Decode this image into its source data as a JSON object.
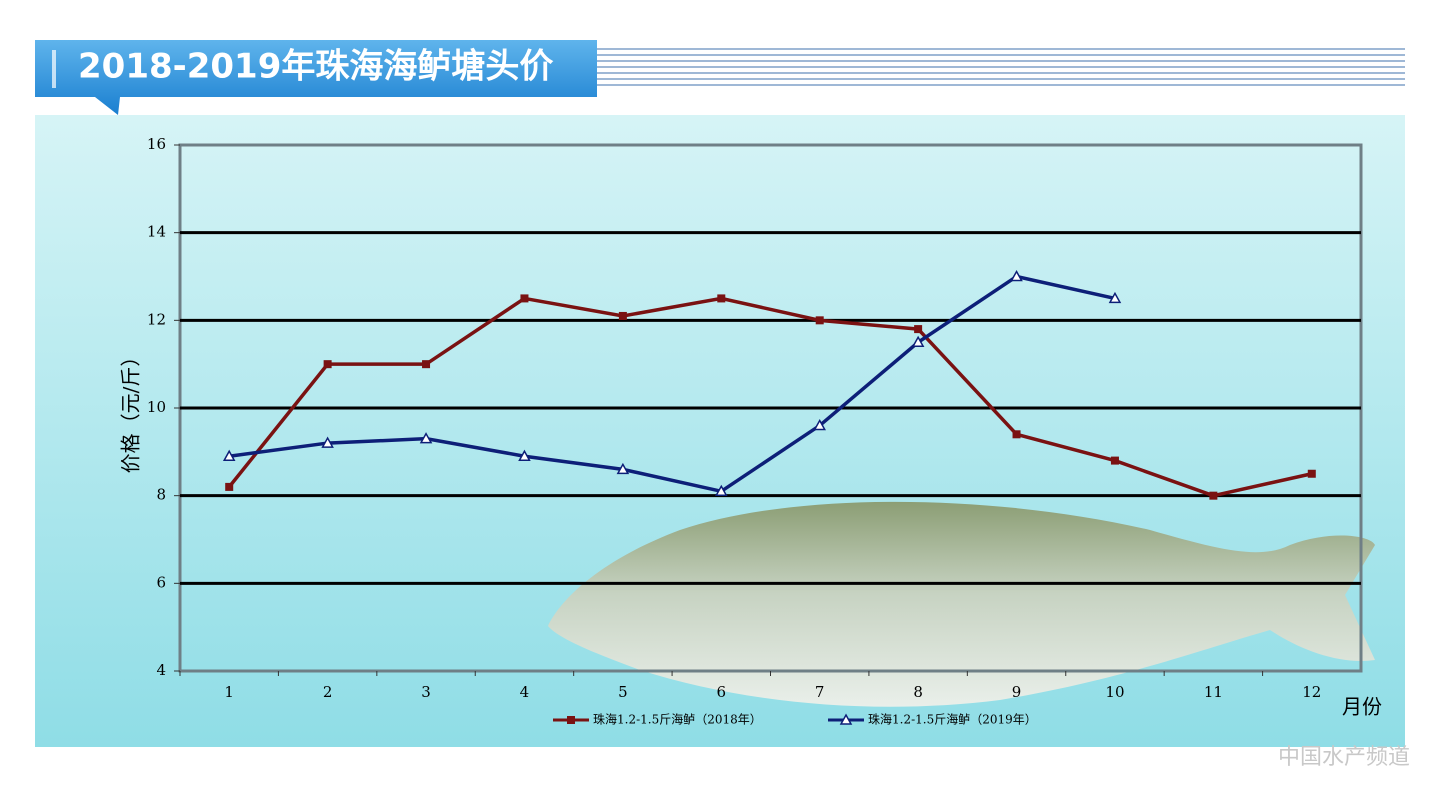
{
  "chart_data": {
    "type": "line",
    "title": "2018-2019年珠海海鲈塘头价",
    "categories": [
      "1",
      "2",
      "3",
      "4",
      "5",
      "6",
      "7",
      "8",
      "9",
      "10",
      "11",
      "12"
    ],
    "series": [
      {
        "name": "珠海1.2-1.5斤海鲈（2018年）",
        "color": "#7a1212",
        "marker": "square",
        "values": [
          8.2,
          11,
          11,
          12.5,
          12.1,
          12.5,
          12,
          11.8,
          9.4,
          8.8,
          8,
          8.5
        ]
      },
      {
        "name": "珠海1.2-1.5斤海鲈（2019年）",
        "color": "#0d1f78",
        "marker": "triangle",
        "values": [
          8.9,
          9.2,
          9.3,
          8.9,
          8.6,
          8.1,
          9.6,
          11.5,
          13,
          12.5,
          null,
          null
        ]
      }
    ],
    "ylabel": "价格（元/斤）",
    "xlabel": "月份",
    "ylim": [
      4,
      16
    ],
    "yticks": [
      4,
      6,
      8,
      10,
      12,
      14,
      16
    ],
    "grid": true,
    "legend": "bottom",
    "watermark": "中国水产频道"
  }
}
